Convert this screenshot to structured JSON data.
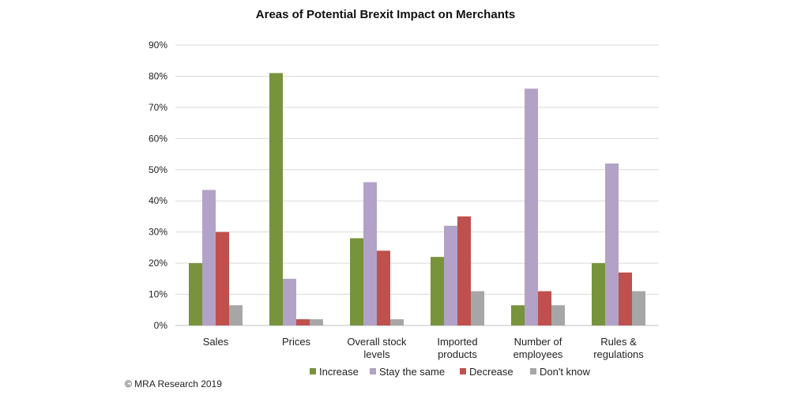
{
  "chart_data": {
    "type": "bar",
    "title": "Areas of Potential Brexit Impact on Merchants",
    "xlabel": "",
    "ylabel": "",
    "ylim": [
      0,
      90
    ],
    "yticks": [
      "0%",
      "10%",
      "20%",
      "30%",
      "40%",
      "50%",
      "60%",
      "70%",
      "80%",
      "90%"
    ],
    "categories": [
      [
        "Sales"
      ],
      [
        "Prices"
      ],
      [
        "Overall stock",
        "levels"
      ],
      [
        "Imported",
        "products"
      ],
      [
        "Number of",
        "employees"
      ],
      [
        "Rules &",
        "regulations"
      ]
    ],
    "series": [
      {
        "name": "Increase",
        "color": "#77933c",
        "values": [
          20,
          81,
          28,
          22,
          6.5,
          20
        ]
      },
      {
        "name": "Stay the same",
        "color": "#b3a2c7",
        "values": [
          43.5,
          15,
          46,
          32,
          76,
          52
        ]
      },
      {
        "name": "Decrease",
        "color": "#c0504d",
        "values": [
          30,
          2,
          24,
          35,
          11,
          17
        ]
      },
      {
        "name": "Don't know",
        "color": "#a6a6a6",
        "values": [
          6.5,
          2,
          2,
          11,
          6.5,
          11
        ]
      }
    ],
    "grid": true,
    "legend": "bottom"
  },
  "footer": {
    "copyright": "© MRA Research 2019"
  }
}
